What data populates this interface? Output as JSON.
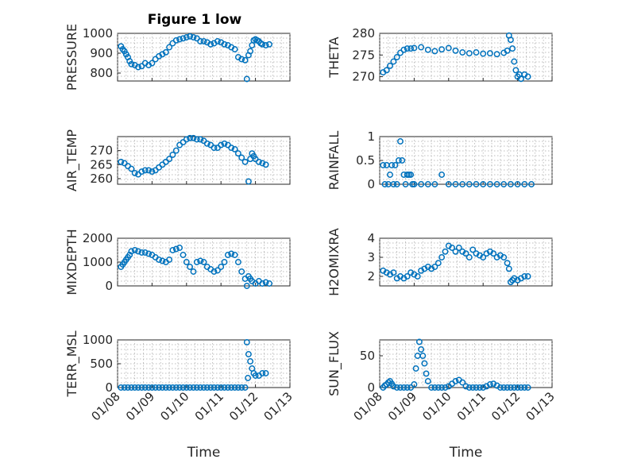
{
  "figure": {
    "title": "Figure 1 low"
  },
  "chart_data": [
    {
      "type": "scatter",
      "ylabel": "PRESSURE",
      "xlabel": "",
      "xlim": [
        0,
        5
      ],
      "ylim": [
        760,
        1000
      ],
      "yticks": [
        800,
        900,
        1000
      ],
      "xticks": [],
      "grid": true,
      "x": [
        0.1,
        0.15,
        0.2,
        0.25,
        0.3,
        0.35,
        0.4,
        0.5,
        0.6,
        0.7,
        0.8,
        0.9,
        1.0,
        1.1,
        1.2,
        1.3,
        1.4,
        1.5,
        1.6,
        1.7,
        1.8,
        1.9,
        2.0,
        2.1,
        2.2,
        2.3,
        2.4,
        2.5,
        2.6,
        2.7,
        2.8,
        2.9,
        3.0,
        3.1,
        3.2,
        3.3,
        3.4,
        3.5,
        3.6,
        3.7,
        3.75,
        3.8,
        3.85,
        3.9,
        3.95,
        4.0,
        4.05,
        4.1,
        4.15,
        4.2,
        4.3,
        4.4
      ],
      "y": [
        935,
        920,
        910,
        895,
        880,
        860,
        845,
        840,
        830,
        835,
        850,
        840,
        850,
        870,
        885,
        895,
        905,
        930,
        950,
        965,
        970,
        975,
        980,
        985,
        980,
        975,
        960,
        960,
        955,
        945,
        950,
        960,
        955,
        945,
        940,
        930,
        920,
        880,
        870,
        865,
        770,
        890,
        910,
        940,
        965,
        970,
        965,
        960,
        950,
        945,
        940,
        945
      ]
    },
    {
      "type": "scatter",
      "ylabel": "THETA",
      "xlabel": "",
      "xlim": [
        0,
        5
      ],
      "ylim": [
        269,
        280
      ],
      "yticks": [
        270,
        275,
        280
      ],
      "xticks": [],
      "grid": true,
      "x": [
        0.1,
        0.2,
        0.3,
        0.4,
        0.5,
        0.6,
        0.7,
        0.8,
        0.9,
        1.0,
        1.2,
        1.4,
        1.6,
        1.8,
        2.0,
        2.2,
        2.4,
        2.6,
        2.8,
        3.0,
        3.2,
        3.4,
        3.6,
        3.7,
        3.75,
        3.8,
        3.85,
        3.9,
        3.95,
        4.0,
        4.05,
        4.1,
        4.2,
        4.3
      ],
      "y": [
        271,
        271.5,
        272.5,
        273.5,
        274.5,
        275.5,
        276.2,
        276.5,
        276.5,
        276.6,
        276.8,
        276.2,
        275.9,
        276.3,
        276.6,
        276,
        275.6,
        275.4,
        275.6,
        275.3,
        275.4,
        275.2,
        275.5,
        276,
        279.5,
        278.5,
        276.5,
        273.5,
        271.5,
        270,
        270.5,
        269.5,
        270.5,
        270
      ]
    },
    {
      "type": "scatter",
      "ylabel": "AIR_TEMP",
      "xlabel": "",
      "xlim": [
        0,
        5
      ],
      "ylim": [
        258,
        275
      ],
      "yticks": [
        260,
        265,
        270
      ],
      "xticks": [],
      "grid": true,
      "x": [
        0.1,
        0.2,
        0.3,
        0.4,
        0.5,
        0.6,
        0.7,
        0.8,
        0.9,
        1.0,
        1.1,
        1.2,
        1.3,
        1.4,
        1.5,
        1.6,
        1.7,
        1.8,
        1.9,
        2.0,
        2.1,
        2.2,
        2.3,
        2.4,
        2.5,
        2.6,
        2.7,
        2.8,
        2.9,
        3.0,
        3.1,
        3.2,
        3.3,
        3.4,
        3.5,
        3.6,
        3.7,
        3.8,
        3.85,
        3.9,
        3.95,
        4.0,
        4.1,
        4.2,
        4.3
      ],
      "y": [
        266,
        265.5,
        264.5,
        263.5,
        262,
        261.5,
        262.5,
        263,
        263,
        262.5,
        263,
        264,
        265,
        266,
        267,
        268.5,
        270,
        272,
        273,
        274,
        274.5,
        274.5,
        274,
        274,
        273.5,
        272.5,
        272,
        271,
        271,
        272,
        272.5,
        272,
        271,
        270.5,
        269,
        267.5,
        266,
        259,
        267,
        269,
        268,
        267,
        266,
        265.5,
        265
      ]
    },
    {
      "type": "scatter",
      "ylabel": "RAINFALL",
      "xlabel": "",
      "xlim": [
        0,
        5
      ],
      "ylim": [
        0,
        1
      ],
      "yticks": [
        0,
        0.5,
        1
      ],
      "xticks": [],
      "grid": true,
      "x": [
        0.1,
        0.15,
        0.2,
        0.25,
        0.3,
        0.35,
        0.4,
        0.45,
        0.5,
        0.55,
        0.6,
        0.65,
        0.7,
        0.75,
        0.8,
        0.85,
        0.9,
        0.95,
        1.0,
        1.2,
        1.4,
        1.6,
        1.8,
        2.0,
        2.2,
        2.4,
        2.6,
        2.8,
        3.0,
        3.2,
        3.4,
        3.6,
        3.8,
        4.0,
        4.2,
        4.4
      ],
      "y": [
        0.4,
        0,
        0.4,
        0,
        0.2,
        0.4,
        0,
        0.4,
        0,
        0.5,
        0.9,
        0.5,
        0.2,
        0,
        0.2,
        0.2,
        0.2,
        0,
        0,
        0,
        0,
        0,
        0.2,
        0,
        0,
        0,
        0,
        0,
        0,
        0,
        0,
        0,
        0,
        0,
        0,
        0
      ]
    },
    {
      "type": "scatter",
      "ylabel": "MIXDEPTH",
      "xlabel": "",
      "xlim": [
        0,
        5
      ],
      "ylim": [
        0,
        2000
      ],
      "yticks": [
        0,
        1000,
        2000
      ],
      "xticks": [],
      "grid": true,
      "x": [
        0.1,
        0.15,
        0.2,
        0.25,
        0.3,
        0.35,
        0.4,
        0.5,
        0.6,
        0.7,
        0.8,
        0.9,
        1.0,
        1.1,
        1.2,
        1.3,
        1.4,
        1.5,
        1.6,
        1.7,
        1.8,
        1.9,
        2.0,
        2.1,
        2.2,
        2.3,
        2.4,
        2.5,
        2.6,
        2.7,
        2.8,
        2.9,
        3.0,
        3.1,
        3.2,
        3.3,
        3.4,
        3.5,
        3.6,
        3.7,
        3.75,
        3.8,
        3.85,
        3.9,
        4.0,
        4.1,
        4.2,
        4.3,
        4.4
      ],
      "y": [
        800,
        900,
        1000,
        1100,
        1200,
        1300,
        1450,
        1500,
        1450,
        1400,
        1400,
        1350,
        1300,
        1200,
        1100,
        1050,
        1000,
        1100,
        1500,
        1550,
        1600,
        1300,
        1000,
        800,
        600,
        1000,
        1050,
        1000,
        800,
        700,
        600,
        650,
        800,
        1000,
        1300,
        1350,
        1300,
        1000,
        600,
        300,
        0,
        400,
        300,
        200,
        100,
        200,
        100,
        150,
        100
      ]
    },
    {
      "type": "scatter",
      "ylabel": "H2OMIXRA",
      "xlabel": "",
      "xlim": [
        0,
        5
      ],
      "ylim": [
        1.5,
        4
      ],
      "yticks": [
        2,
        3,
        4
      ],
      "xticks": [],
      "grid": true,
      "x": [
        0.1,
        0.2,
        0.3,
        0.4,
        0.5,
        0.6,
        0.7,
        0.8,
        0.9,
        1.0,
        1.1,
        1.2,
        1.3,
        1.4,
        1.5,
        1.6,
        1.7,
        1.8,
        1.9,
        2.0,
        2.1,
        2.2,
        2.3,
        2.4,
        2.5,
        2.6,
        2.7,
        2.8,
        2.9,
        3.0,
        3.1,
        3.2,
        3.3,
        3.4,
        3.5,
        3.6,
        3.7,
        3.75,
        3.8,
        3.85,
        3.9,
        4.0,
        4.1,
        4.2,
        4.3
      ],
      "y": [
        2.3,
        2.2,
        2.1,
        2.2,
        1.9,
        2,
        1.9,
        2,
        2.2,
        2.1,
        2,
        2.3,
        2.4,
        2.5,
        2.4,
        2.5,
        2.7,
        3,
        3.3,
        3.6,
        3.5,
        3.3,
        3.5,
        3.3,
        3.2,
        3,
        3.4,
        3.2,
        3.1,
        3,
        3.2,
        3.3,
        3.2,
        3,
        3.1,
        3,
        2.7,
        2.4,
        1.7,
        1.8,
        1.9,
        1.8,
        1.9,
        2,
        2
      ]
    },
    {
      "type": "scatter",
      "ylabel": "TERR_MSL",
      "xlabel": "Time",
      "xlim": [
        0,
        5
      ],
      "ylim": [
        0,
        1000
      ],
      "yticks": [
        0,
        500,
        1000
      ],
      "xticks": [
        "01/08",
        "01/09",
        "01/10",
        "01/11",
        "01/12",
        "01/13"
      ],
      "grid": true,
      "x": [
        0.1,
        0.2,
        0.3,
        0.4,
        0.5,
        0.6,
        0.7,
        0.8,
        0.9,
        1.0,
        1.1,
        1.2,
        1.3,
        1.4,
        1.5,
        1.6,
        1.7,
        1.8,
        1.9,
        2.0,
        2.1,
        2.2,
        2.3,
        2.4,
        2.5,
        2.6,
        2.7,
        2.8,
        2.9,
        3.0,
        3.1,
        3.2,
        3.3,
        3.4,
        3.5,
        3.6,
        3.7,
        3.75,
        3.78,
        3.8,
        3.85,
        3.9,
        3.95,
        4.0,
        4.1,
        4.2,
        4.3
      ],
      "y": [
        0,
        0,
        0,
        0,
        0,
        0,
        0,
        0,
        0,
        0,
        0,
        0,
        0,
        0,
        0,
        0,
        0,
        0,
        0,
        0,
        0,
        0,
        0,
        0,
        0,
        0,
        0,
        0,
        0,
        0,
        0,
        0,
        0,
        0,
        0,
        0,
        0,
        950,
        200,
        700,
        550,
        400,
        300,
        250,
        250,
        300,
        300
      ]
    },
    {
      "type": "scatter",
      "ylabel": "SUN_FLUX",
      "xlabel": "Time",
      "xlim": [
        0,
        5
      ],
      "ylim": [
        0,
        75
      ],
      "yticks": [
        0,
        50
      ],
      "xticks": [
        "01/08",
        "01/09",
        "01/10",
        "01/11",
        "01/12",
        "01/13"
      ],
      "grid": true,
      "x": [
        0.1,
        0.15,
        0.2,
        0.25,
        0.3,
        0.35,
        0.4,
        0.5,
        0.6,
        0.7,
        0.8,
        0.9,
        1.0,
        1.05,
        1.1,
        1.15,
        1.2,
        1.25,
        1.3,
        1.35,
        1.4,
        1.5,
        1.6,
        1.7,
        1.8,
        1.9,
        2.0,
        2.1,
        2.2,
        2.3,
        2.4,
        2.5,
        2.6,
        2.7,
        2.8,
        2.9,
        3.0,
        3.1,
        3.2,
        3.3,
        3.4,
        3.5,
        3.6,
        3.7,
        3.8,
        3.9,
        4.0,
        4.1,
        4.2,
        4.3
      ],
      "y": [
        0,
        3,
        5,
        8,
        10,
        6,
        2,
        0,
        0,
        0,
        0,
        0,
        5,
        30,
        50,
        72,
        60,
        50,
        38,
        22,
        10,
        0,
        0,
        0,
        0,
        0,
        2,
        6,
        10,
        12,
        8,
        2,
        0,
        0,
        0,
        0,
        0,
        2,
        5,
        6,
        3,
        0,
        0,
        0,
        0,
        0,
        0,
        0,
        0,
        0
      ]
    }
  ]
}
